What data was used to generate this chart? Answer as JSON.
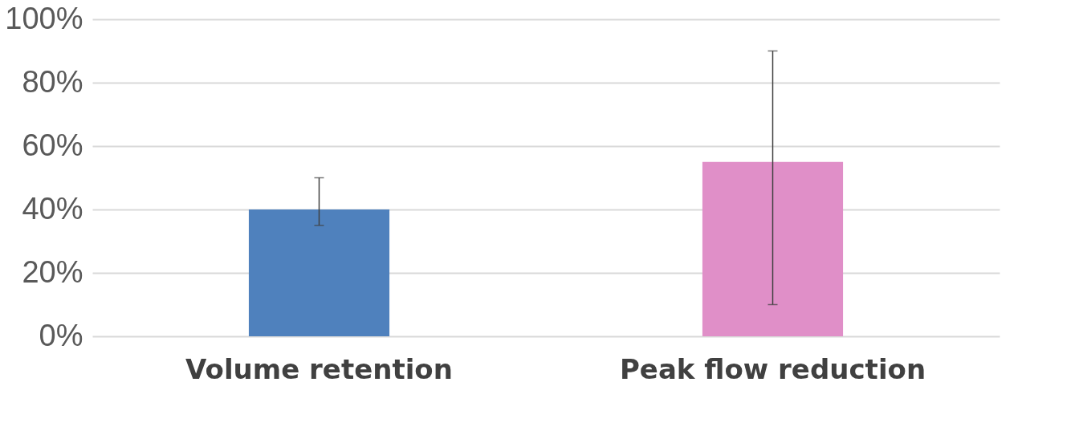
{
  "chart_data": {
    "type": "bar",
    "categories": [
      "Volume retention",
      "Peak flow reduction"
    ],
    "values": [
      40,
      55
    ],
    "colors": [
      "#4f81bd",
      "#e08fc8"
    ],
    "errors": [
      [
        35,
        50
      ],
      [
        10,
        90
      ]
    ],
    "ylim": [
      0,
      100
    ],
    "yticks": [
      {
        "value": 0,
        "label": "0%"
      },
      {
        "value": 20,
        "label": "20%"
      },
      {
        "value": 40,
        "label": "40%"
      },
      {
        "value": 60,
        "label": "60%"
      },
      {
        "value": 80,
        "label": "80%"
      },
      {
        "value": 100,
        "label": "100%"
      }
    ],
    "grid": "y"
  }
}
